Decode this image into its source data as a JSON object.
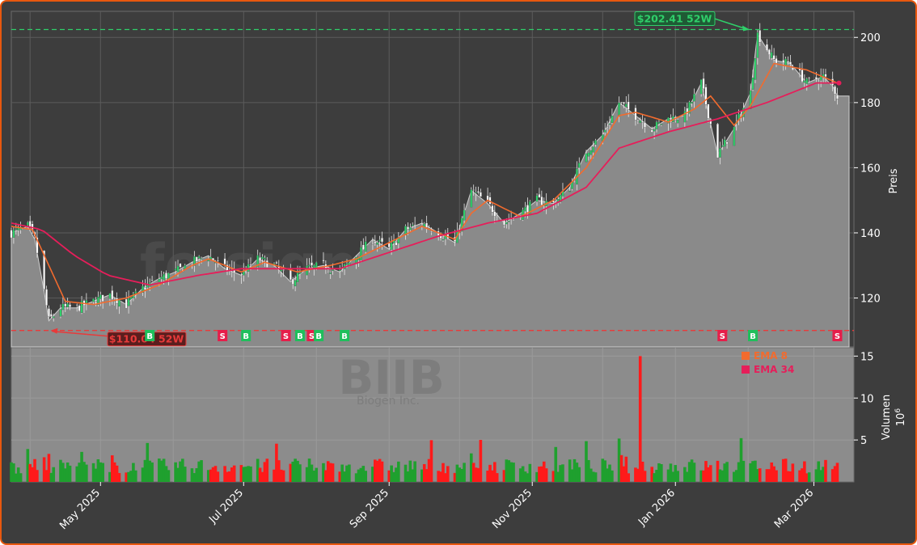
{
  "watermark": {
    "site": "fe.signale.trade",
    "ticker": "BIIB",
    "company": "Biogen Inc."
  },
  "chart_data": {
    "type": "candlestick",
    "x_range": [
      "2025-03-24",
      "2026-03-16"
    ],
    "price_axis": {
      "label": "Preis",
      "ylim": [
        105,
        208
      ],
      "ticks": [
        120,
        140,
        160,
        180,
        200
      ],
      "ticks_label": [
        "120",
        "140",
        "160",
        "180",
        "200"
      ]
    },
    "volume_axis": {
      "label": "Volumen",
      "multiplier": "10",
      "exponent": "6",
      "ylim": [
        0,
        16
      ],
      "ticks": [
        5,
        10,
        15
      ],
      "ticks_label": [
        "5",
        "10",
        "15"
      ]
    },
    "x_ticks": [
      {
        "date": "2025-05-01",
        "label": "May 2025"
      },
      {
        "date": "2025-07-01",
        "label": "Jul 2025"
      },
      {
        "date": "2025-09-01",
        "label": "Sep 2025"
      },
      {
        "date": "2025-11-01",
        "label": "Nov 2025"
      },
      {
        "date": "2026-01-01",
        "label": "Jan 2026"
      },
      {
        "date": "2026-03-01",
        "label": "Mar 2026"
      }
    ],
    "high_52w": {
      "value": 202.41,
      "label": "$202.41 52W",
      "date": "2026-02-03"
    },
    "low_52w": {
      "value": 110.04,
      "label": "$110.04 52W",
      "date": "2025-04-09"
    },
    "last_close": 182,
    "legend": [
      {
        "name": "EMA 8",
        "color": "#f26b2e"
      },
      {
        "name": "EMA 34",
        "color": "#e61e5a"
      }
    ],
    "price_path": [
      [
        "2025-03-24",
        140
      ],
      [
        "2025-03-31",
        142
      ],
      [
        "2025-04-03",
        138
      ],
      [
        "2025-04-07",
        122
      ],
      [
        "2025-04-09",
        113
      ],
      [
        "2025-04-14",
        117
      ],
      [
        "2025-04-21",
        117
      ],
      [
        "2025-04-28",
        119
      ],
      [
        "2025-05-05",
        121
      ],
      [
        "2025-05-12",
        118
      ],
      [
        "2025-05-19",
        123
      ],
      [
        "2025-05-26",
        126
      ],
      [
        "2025-06-02",
        128
      ],
      [
        "2025-06-09",
        131
      ],
      [
        "2025-06-16",
        133
      ],
      [
        "2025-06-23",
        129
      ],
      [
        "2025-06-30",
        127
      ],
      [
        "2025-07-07",
        132
      ],
      [
        "2025-07-14",
        130
      ],
      [
        "2025-07-21",
        125
      ],
      [
        "2025-07-28",
        129
      ],
      [
        "2025-08-04",
        130
      ],
      [
        "2025-08-11",
        128
      ],
      [
        "2025-08-18",
        133
      ],
      [
        "2025-08-25",
        138
      ],
      [
        "2025-09-01",
        135
      ],
      [
        "2025-09-08",
        141
      ],
      [
        "2025-09-15",
        143
      ],
      [
        "2025-09-22",
        140
      ],
      [
        "2025-09-29",
        137
      ],
      [
        "2025-10-06",
        153
      ],
      [
        "2025-10-13",
        149
      ],
      [
        "2025-10-20",
        143
      ],
      [
        "2025-10-27",
        146
      ],
      [
        "2025-11-03",
        150
      ],
      [
        "2025-11-10",
        149
      ],
      [
        "2025-11-17",
        154
      ],
      [
        "2025-11-24",
        165
      ],
      [
        "2025-12-01",
        170
      ],
      [
        "2025-12-08",
        180
      ],
      [
        "2025-12-15",
        176
      ],
      [
        "2025-12-22",
        172
      ],
      [
        "2025-12-29",
        175
      ],
      [
        "2026-01-05",
        176
      ],
      [
        "2026-01-12",
        186
      ],
      [
        "2026-01-19",
        164
      ],
      [
        "2026-01-26",
        172
      ],
      [
        "2026-02-02",
        183
      ],
      [
        "2026-02-05",
        201
      ],
      [
        "2026-02-12",
        193
      ],
      [
        "2026-02-19",
        192
      ],
      [
        "2026-02-26",
        186
      ],
      [
        "2026-03-05",
        188
      ],
      [
        "2026-03-09",
        185
      ],
      [
        "2026-03-11",
        182
      ]
    ],
    "ema8": [
      [
        "2025-03-24",
        142
      ],
      [
        "2025-04-02",
        141
      ],
      [
        "2025-04-09",
        130
      ],
      [
        "2025-04-16",
        119
      ],
      [
        "2025-04-28",
        118
      ],
      [
        "2025-05-12",
        120
      ],
      [
        "2025-05-26",
        124
      ],
      [
        "2025-06-09",
        130
      ],
      [
        "2025-06-16",
        132
      ],
      [
        "2025-06-30",
        128
      ],
      [
        "2025-07-10",
        131
      ],
      [
        "2025-07-24",
        128
      ],
      [
        "2025-08-07",
        130
      ],
      [
        "2025-08-18",
        132
      ],
      [
        "2025-09-01",
        137
      ],
      [
        "2025-09-15",
        142
      ],
      [
        "2025-09-29",
        138
      ],
      [
        "2025-10-06",
        146
      ],
      [
        "2025-10-13",
        150
      ],
      [
        "2025-10-27",
        145
      ],
      [
        "2025-11-10",
        150
      ],
      [
        "2025-11-24",
        160
      ],
      [
        "2025-12-08",
        176
      ],
      [
        "2025-12-15",
        177
      ],
      [
        "2025-12-29",
        174
      ],
      [
        "2026-01-09",
        178
      ],
      [
        "2026-01-16",
        182
      ],
      [
        "2026-01-26",
        173
      ],
      [
        "2026-02-02",
        179
      ],
      [
        "2026-02-12",
        192
      ],
      [
        "2026-02-26",
        190
      ],
      [
        "2026-03-11",
        186
      ]
    ],
    "ema34": [
      [
        "2025-03-24",
        143
      ],
      [
        "2025-04-06",
        141
      ],
      [
        "2025-04-20",
        133
      ],
      [
        "2025-05-04",
        127
      ],
      [
        "2025-05-22",
        124
      ],
      [
        "2025-06-12",
        127
      ],
      [
        "2025-06-30",
        129
      ],
      [
        "2025-07-20",
        129
      ],
      [
        "2025-08-11",
        129
      ],
      [
        "2025-09-01",
        134
      ],
      [
        "2025-09-22",
        139
      ],
      [
        "2025-10-13",
        143
      ],
      [
        "2025-11-03",
        146
      ],
      [
        "2025-11-24",
        154
      ],
      [
        "2025-12-08",
        166
      ],
      [
        "2025-12-29",
        171
      ],
      [
        "2026-01-19",
        175
      ],
      [
        "2026-02-09",
        180
      ],
      [
        "2026-03-02",
        186
      ],
      [
        "2026-03-11",
        186
      ]
    ],
    "signals": [
      {
        "date": "2025-05-22",
        "type": "B"
      },
      {
        "date": "2025-06-22",
        "type": "S"
      },
      {
        "date": "2025-07-02",
        "type": "B"
      },
      {
        "date": "2025-07-19",
        "type": "S"
      },
      {
        "date": "2025-07-25",
        "type": "B"
      },
      {
        "date": "2025-07-30",
        "type": "S"
      },
      {
        "date": "2025-08-02",
        "type": "B"
      },
      {
        "date": "2025-08-13",
        "type": "B"
      },
      {
        "date": "2026-01-21",
        "type": "S"
      },
      {
        "date": "2026-02-03",
        "type": "B"
      },
      {
        "date": "2026-03-11",
        "type": "S"
      }
    ],
    "volume_spike": {
      "date": "2025-12-17",
      "value": 15
    }
  }
}
